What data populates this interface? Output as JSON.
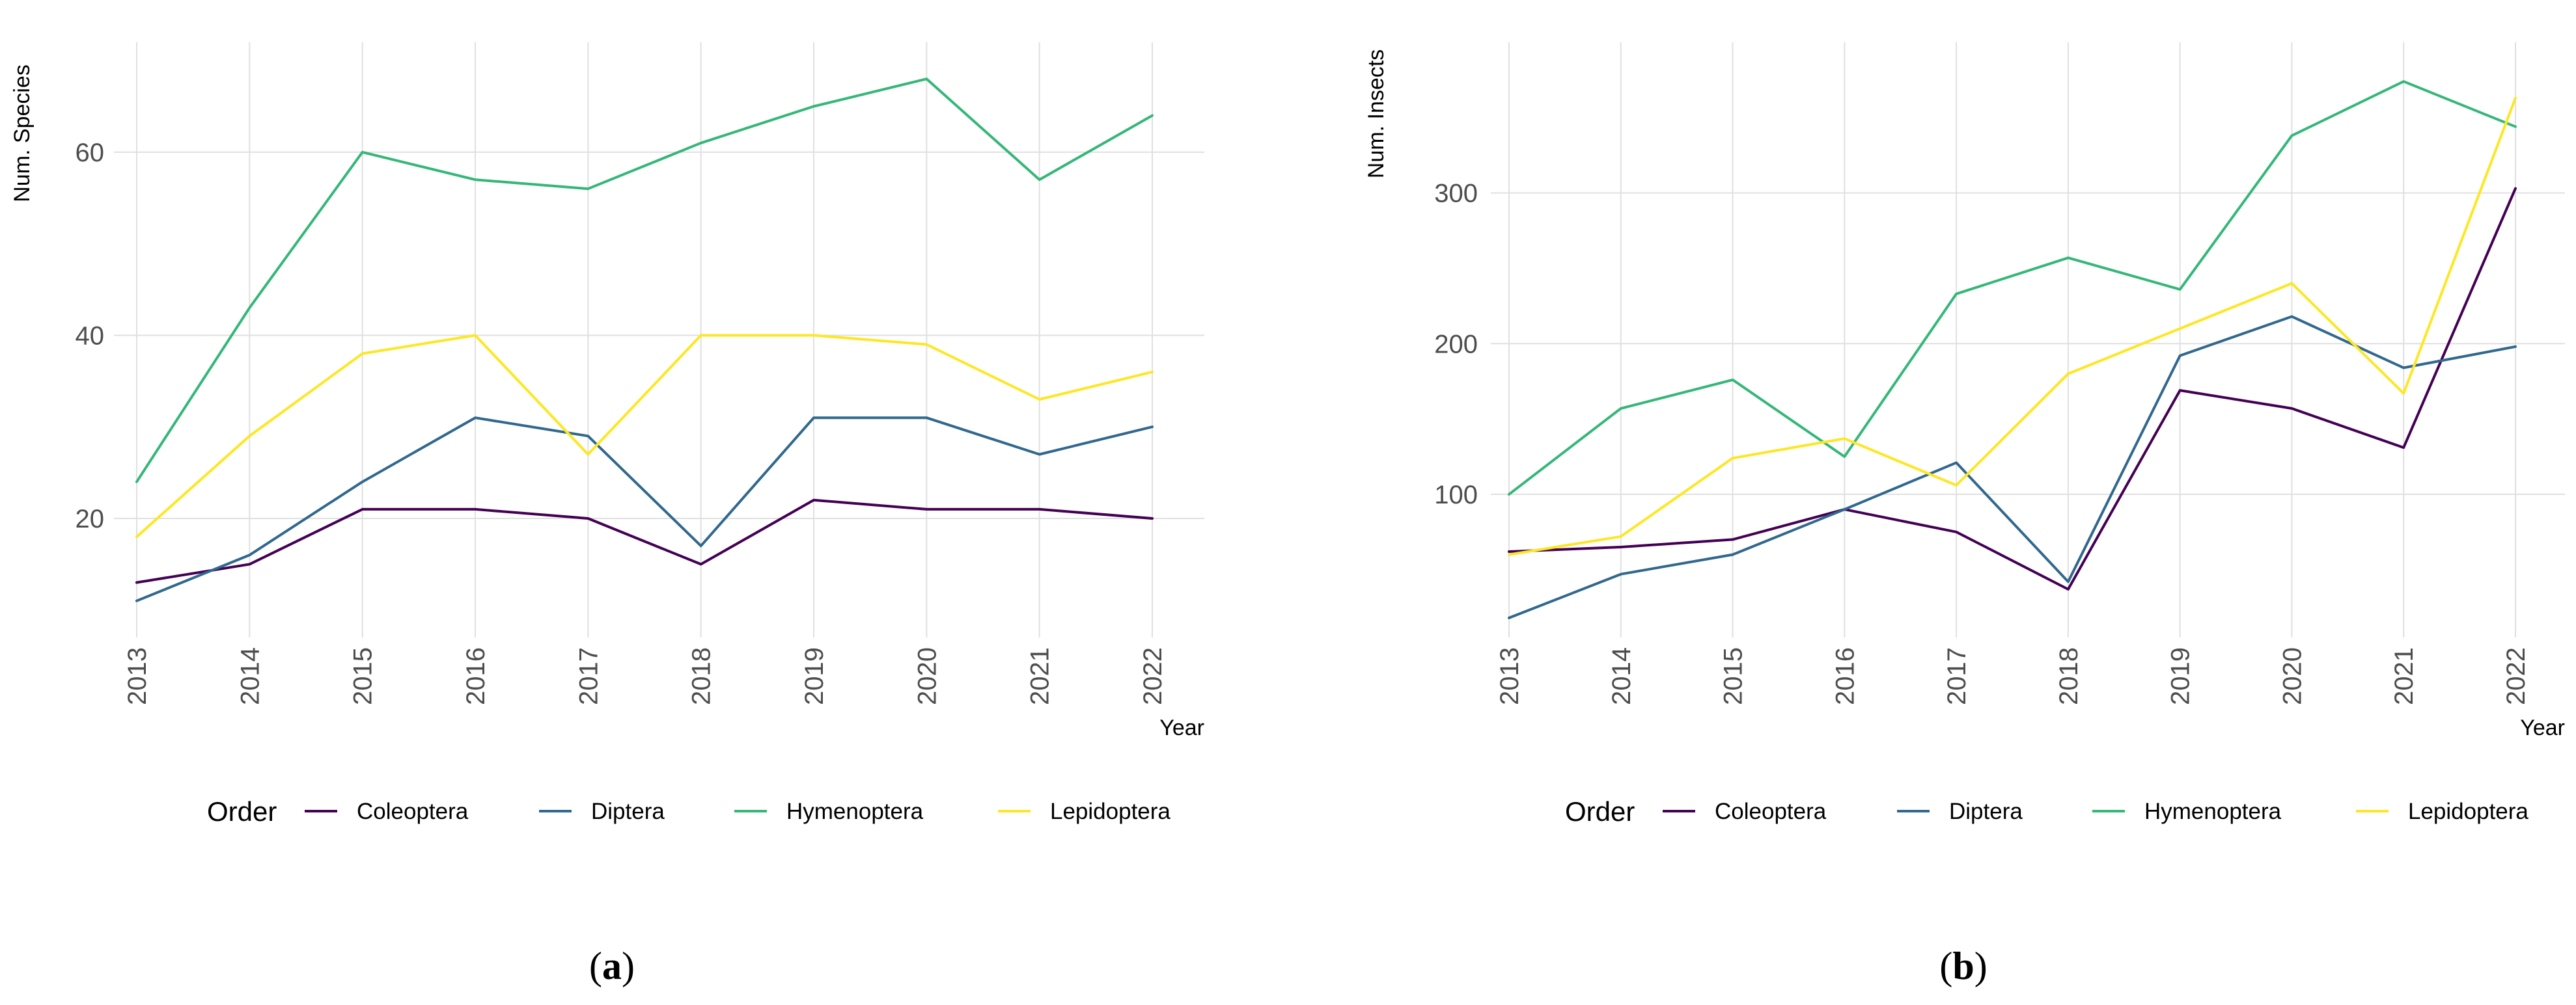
{
  "colors": {
    "Coleoptera": "#440154",
    "Diptera": "#31688E",
    "Hymenoptera": "#35B779",
    "Lepidoptera": "#FDE725"
  },
  "legend": {
    "title": "Order",
    "entries": [
      "Coleoptera",
      "Diptera",
      "Hymenoptera",
      "Lepidoptera"
    ],
    "placement": "bottom"
  },
  "chart_data": [
    {
      "type": "line",
      "panel_label": "a",
      "xlabel": "Year",
      "ylabel": "Num. Species",
      "x": [
        "2013",
        "2014",
        "2015",
        "2016",
        "2017",
        "2018",
        "2019",
        "2020",
        "2021",
        "2022"
      ],
      "yticks": [
        20,
        40,
        60
      ],
      "ylim": [
        7,
        72
      ],
      "grid": true,
      "series": [
        {
          "name": "Coleoptera",
          "values": [
            13,
            15,
            21,
            21,
            20,
            15,
            22,
            21,
            21,
            20
          ]
        },
        {
          "name": "Diptera",
          "values": [
            11,
            16,
            24,
            31,
            29,
            17,
            31,
            31,
            27,
            30
          ]
        },
        {
          "name": "Hymenoptera",
          "values": [
            24,
            43,
            60,
            57,
            56,
            61,
            65,
            68,
            57,
            64
          ]
        },
        {
          "name": "Lepidoptera",
          "values": [
            18,
            29,
            38,
            40,
            27,
            40,
            40,
            39,
            33,
            36
          ]
        }
      ]
    },
    {
      "type": "line",
      "panel_label": "b",
      "xlabel": "Year",
      "ylabel": "Num. Insects",
      "x": [
        "2013",
        "2014",
        "2015",
        "2016",
        "2017",
        "2018",
        "2019",
        "2020",
        "2021",
        "2022"
      ],
      "yticks": [
        100,
        200,
        300
      ],
      "ylim": [
        5,
        400
      ],
      "grid": true,
      "series": [
        {
          "name": "Coleoptera",
          "values": [
            62,
            65,
            70,
            90,
            75,
            37,
            169,
            157,
            131,
            303
          ]
        },
        {
          "name": "Diptera",
          "values": [
            18,
            47,
            60,
            90,
            121,
            42,
            192,
            218,
            184,
            198
          ]
        },
        {
          "name": "Hymenoptera",
          "values": [
            100,
            157,
            176,
            125,
            233,
            257,
            236,
            338,
            374,
            344
          ]
        },
        {
          "name": "Lepidoptera",
          "values": [
            60,
            72,
            124,
            137,
            106,
            180,
            210,
            240,
            167,
            363
          ]
        }
      ]
    }
  ]
}
